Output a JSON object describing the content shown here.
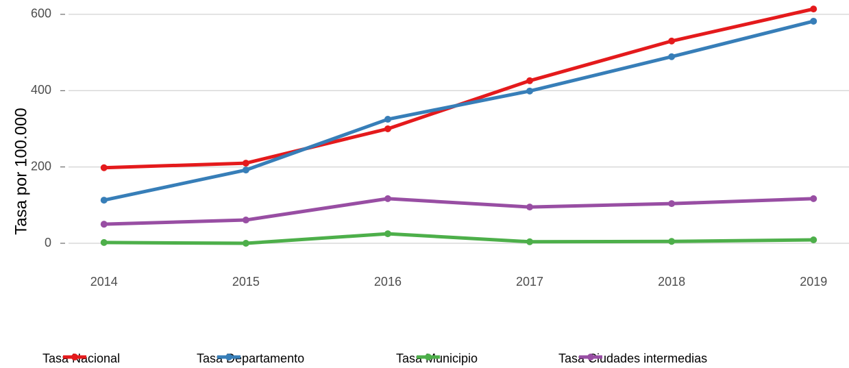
{
  "chart_data": {
    "type": "line",
    "y_label": "Tasa por 100.000",
    "x": [
      2014,
      2015,
      2016,
      2017,
      2018,
      2019
    ],
    "series": [
      {
        "name": "Tasa Nacional",
        "color": "#e41a1c",
        "values": [
          198,
          210,
          300,
          426,
          530,
          614
        ]
      },
      {
        "name": "Tasa Departamento",
        "color": "#377eb8",
        "values": [
          113,
          192,
          325,
          399,
          489,
          582
        ]
      },
      {
        "name": "Tasa Municipio",
        "color": "#4daf4a",
        "values": [
          2,
          0,
          25,
          4,
          5,
          9
        ]
      },
      {
        "name": "Tasa Ciudades intermedias",
        "color": "#984ea3",
        "values": [
          50,
          61,
          117,
          95,
          104,
          117
        ]
      }
    ],
    "xlim": [
      2013.75,
      2019.25
    ],
    "xticks": [
      2014,
      2015,
      2016,
      2017,
      2018,
      2019
    ],
    "ylim": [
      -35,
      625
    ],
    "yticks": [
      0,
      200,
      400,
      600
    ],
    "grid": true,
    "legend": "bottom"
  }
}
